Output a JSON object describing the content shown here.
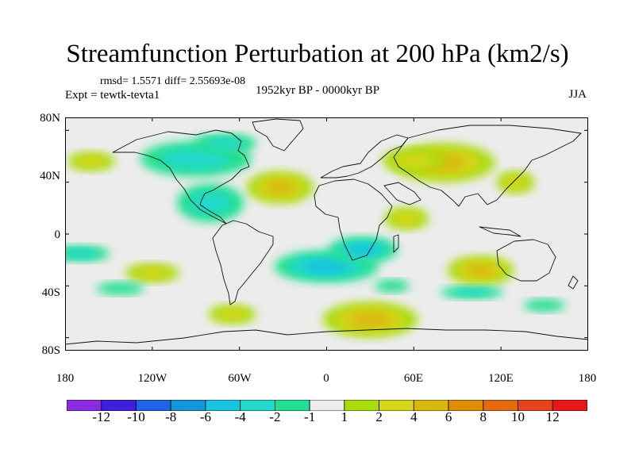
{
  "header": {
    "title": "Streamfunction Perturbation at 200 hPa (km2/s)",
    "stats": "rmsd= 1.5571 diff= 2.55693e-08",
    "expt": "Expt = tewtk-tevta1",
    "period": "1952kyr BP - 0000kyr BP",
    "season": "JJA"
  },
  "axes": {
    "y_ticks": [
      "80N",
      "40N",
      "0",
      "40S",
      "80S"
    ],
    "x_ticks": [
      "180",
      "120W",
      "60W",
      "0",
      "60E",
      "120E",
      "180"
    ]
  },
  "colorbar": {
    "colors": [
      "#8a2be2",
      "#3f1fdc",
      "#1e64e6",
      "#1497d8",
      "#19c4de",
      "#23d9cc",
      "#22e08f",
      "#ececec",
      "#a8dc0c",
      "#d7d61a",
      "#d8b80c",
      "#e08e08",
      "#e66a10",
      "#e6421c",
      "#e81818"
    ],
    "labels": [
      "-12",
      "-10",
      "-8",
      "-6",
      "-4",
      "-2",
      "-1",
      "1",
      "2",
      "4",
      "6",
      "8",
      "10",
      "12"
    ]
  },
  "chart_data": {
    "type": "contour-map",
    "field": "200 hPa streamfunction perturbation",
    "units": "km2/s",
    "levels": [
      -12,
      -10,
      -8,
      -6,
      -4,
      -2,
      -1,
      1,
      2,
      4,
      6,
      8,
      10,
      12
    ],
    "lon_range": [
      -180,
      180
    ],
    "lat_range": [
      -90,
      90
    ],
    "anomaly_centers": [
      {
        "lon": 80,
        "lat": 55,
        "value": 5
      },
      {
        "lon": 60,
        "lat": 57,
        "value": 3
      },
      {
        "lon": -32,
        "lat": 36,
        "value": 5
      },
      {
        "lon": 106,
        "lat": -28,
        "value": 5
      },
      {
        "lon": 30,
        "lat": -66,
        "value": 5
      },
      {
        "lon": -162,
        "lat": 56,
        "value": 3
      },
      {
        "lon": 55,
        "lat": 12,
        "value": 2
      },
      {
        "lon": -65,
        "lat": -62,
        "value": 2
      },
      {
        "lon": -120,
        "lat": -30,
        "value": 2
      },
      {
        "lon": 130,
        "lat": 40,
        "value": 2
      },
      {
        "lon": -90,
        "lat": 58,
        "value": -3
      },
      {
        "lon": -70,
        "lat": 70,
        "value": -2
      },
      {
        "lon": -80,
        "lat": 24,
        "value": -3
      },
      {
        "lon": 0,
        "lat": -25,
        "value": -5
      },
      {
        "lon": 25,
        "lat": -12,
        "value": -4
      },
      {
        "lon": -170,
        "lat": -15,
        "value": -2
      },
      {
        "lon": 100,
        "lat": -45,
        "value": -2
      },
      {
        "lon": -142,
        "lat": -42,
        "value": -1
      },
      {
        "lon": 150,
        "lat": -55,
        "value": -1
      },
      {
        "lon": 45,
        "lat": -40,
        "value": -1
      }
    ]
  }
}
